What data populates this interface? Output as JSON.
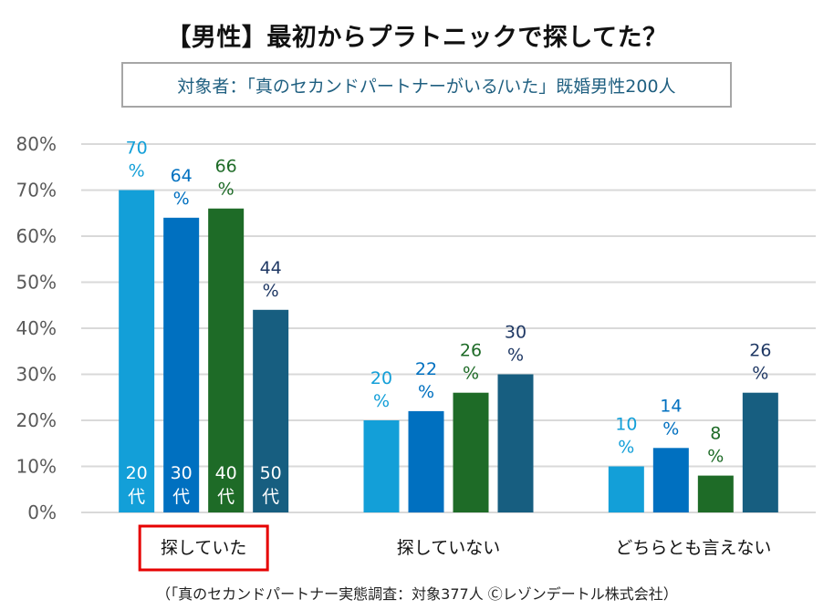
{
  "title": "【男性】最初からプラトニックで探してた？",
  "subtitle": "対象者：「真のセカンドパートナーがいる/いた」既婚男性200人",
  "footer": "（「真のセカンドパートナー実態調査：対象377人 Ⓒレゾンデートル株式会社）",
  "chart_data": {
    "type": "bar",
    "title": "【男性】最初からプラトニックで探してた？",
    "subtitle": "対象者：「真のセカンドパートナーがいる/いた」既婚男性200人",
    "xlabel": "",
    "ylabel": "",
    "categories": [
      "探していた",
      "探していない",
      "どちらとも言えない"
    ],
    "highlighted_category": "探していた",
    "highlight_color": "#e60000",
    "series": [
      {
        "name": "20代",
        "label_number": "20",
        "label_suffix": "代",
        "values": [
          70,
          20,
          10
        ],
        "color": "#139fd8",
        "label_color": "#139fd8"
      },
      {
        "name": "30代",
        "label_number": "30",
        "label_suffix": "代",
        "values": [
          64,
          22,
          14
        ],
        "color": "#0070c0",
        "label_color": "#0070c0"
      },
      {
        "name": "40代",
        "label_number": "40",
        "label_suffix": "代",
        "values": [
          66,
          26,
          8
        ],
        "color": "#1e6b27",
        "label_color": "#1e6b27"
      },
      {
        "name": "50代",
        "label_number": "50",
        "label_suffix": "代",
        "values": [
          44,
          30,
          26
        ],
        "color": "#175e80",
        "label_color": "#1f3864"
      }
    ],
    "series_labels_inside_category": "探していた",
    "value_suffix": "%",
    "ylim": [
      0,
      80
    ],
    "yticks": [
      0,
      10,
      20,
      30,
      40,
      50,
      60,
      70,
      80
    ],
    "ytick_labels": [
      "0%",
      "10%",
      "20%",
      "30%",
      "40%",
      "50%",
      "60%",
      "70%",
      "80%"
    ],
    "grid": true,
    "grid_color": "#d9d9d9",
    "legend": "none (series names shown inside bars of first category)"
  }
}
